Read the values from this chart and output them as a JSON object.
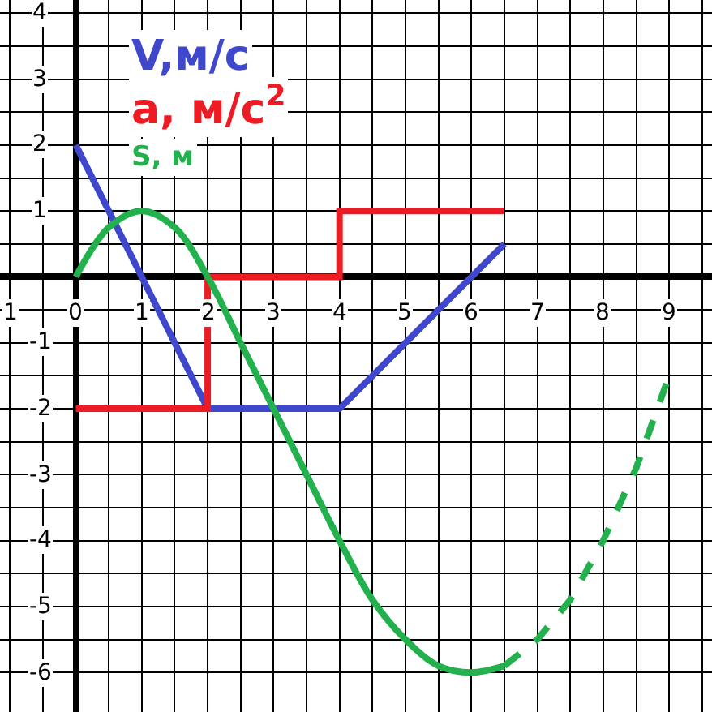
{
  "chart_data": {
    "type": "line",
    "series": [
      {
        "name": "V,м/с",
        "color": "#3f48cc",
        "x": [
          0,
          2,
          4,
          6.5
        ],
        "values": [
          2,
          -2,
          -2,
          0.5
        ]
      },
      {
        "name": "a, м/с$^{2}$",
        "color": "#ed1c24",
        "x": [
          0,
          2,
          2,
          4,
          4,
          6.5
        ],
        "values": [
          -2,
          -2,
          0,
          0,
          1,
          1
        ]
      },
      {
        "name": "S, м",
        "color": "#22b14c",
        "x": [
          0,
          0.5,
          1,
          1.5,
          2,
          2.5,
          3,
          3.5,
          4,
          4.5,
          5,
          5.5,
          6,
          6.5
        ],
        "values": [
          0,
          0.75,
          1,
          0.75,
          0,
          -1,
          -2,
          -3,
          -4,
          -4.9,
          -5.5,
          -5.9,
          -6,
          -5.9
        ]
      },
      {
        "color": "#22b14c",
        "line_style": "dashed",
        "x": [
          6.5,
          7,
          7.5,
          8,
          8.5,
          9
        ],
        "values": [
          -5.9,
          -5.5,
          -4.9,
          -4,
          -2.9,
          -1.5
        ]
      }
    ],
    "xlim": [
      -1.15,
      9.65
    ],
    "ylim": [
      -6.6,
      4.2
    ],
    "xticks": [
      {
        "value": -1,
        "label": "1"
      },
      {
        "value": -0.5,
        "label": null
      },
      0,
      {
        "value": 0.5,
        "label": null
      },
      1,
      {
        "value": 1.5,
        "label": null
      },
      2,
      {
        "value": 2.5,
        "label": null
      },
      3,
      {
        "value": 3.5,
        "label": null
      },
      4,
      {
        "value": 4.5,
        "label": null
      },
      5,
      {
        "value": 5.5,
        "label": null
      },
      6,
      {
        "value": 6.5,
        "label": null
      },
      7,
      {
        "value": 7.5,
        "label": null
      },
      8,
      {
        "value": 8.5,
        "label": null
      },
      9,
      {
        "value": 9.5,
        "label": null
      }
    ],
    "yticks": [
      -6,
      {
        "value": -5.5,
        "label": null
      },
      -5,
      {
        "value": -4.5,
        "label": null
      },
      -4,
      {
        "value": -3.5,
        "label": null
      },
      -3,
      {
        "value": -2.5,
        "label": null
      },
      -2,
      {
        "value": -1.5,
        "label": null
      },
      -1,
      {
        "value": -0.5,
        "label": null
      },
      {
        "value": 0,
        "label": null
      },
      {
        "value": 0.5,
        "label": null
      },
      1,
      {
        "value": 1.5,
        "label": null
      },
      2,
      {
        "value": 2.5,
        "label": null
      },
      3,
      {
        "value": 3.5,
        "label": null
      },
      4
    ],
    "grid": true,
    "line_style": "solid",
    "marker": "none"
  }
}
